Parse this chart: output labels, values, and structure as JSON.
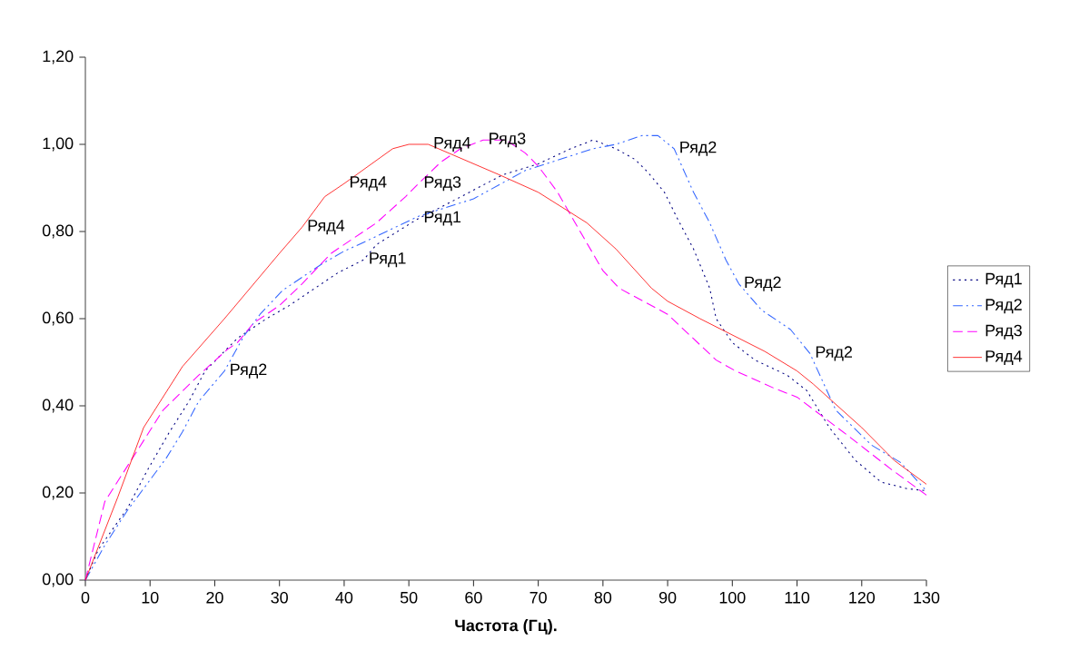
{
  "chart_data": {
    "type": "line",
    "xlabel": "Частота (Гц).",
    "xlim": [
      0,
      130
    ],
    "ylim": [
      0,
      1.2
    ],
    "xticks": [
      0,
      10,
      20,
      30,
      40,
      50,
      60,
      70,
      80,
      90,
      100,
      110,
      120,
      130
    ],
    "yticks": [
      {
        "value": 0,
        "label": "0,00"
      },
      {
        "value": 0.2,
        "label": "0,20"
      },
      {
        "value": 0.4,
        "label": "0,40"
      },
      {
        "value": 0.6,
        "label": "0,60"
      },
      {
        "value": 0.8,
        "label": "0,80"
      },
      {
        "value": 1.0,
        "label": "1,00"
      },
      {
        "value": 1.2,
        "label": "1,20"
      }
    ],
    "grid": false,
    "legend": "right",
    "marker": "none",
    "series": [
      {
        "name": "Ряд1",
        "color": "#000080",
        "line_style": "dotted",
        "x": [
          0,
          2,
          6.5,
          9.5,
          13,
          16,
          18.5,
          23.5,
          28,
          31.5,
          35.5,
          39,
          43,
          45,
          51.5,
          55.5,
          64.5,
          70,
          75,
          78.5,
          82,
          85,
          87,
          89.5,
          91.5,
          94,
          96.5,
          97.5,
          100,
          103.5,
          108.5,
          111.5,
          115,
          119,
          123,
          127,
          130
        ],
        "values": [
          0,
          0.07,
          0.165,
          0.25,
          0.34,
          0.41,
          0.48,
          0.555,
          0.6,
          0.63,
          0.67,
          0.705,
          0.735,
          0.77,
          0.83,
          0.86,
          0.93,
          0.955,
          0.99,
          1.01,
          0.99,
          0.965,
          0.935,
          0.89,
          0.83,
          0.76,
          0.67,
          0.6,
          0.545,
          0.505,
          0.47,
          0.435,
          0.35,
          0.275,
          0.225,
          0.21,
          0.205
        ]
      },
      {
        "name": "Ряд2",
        "color": "#3366ff",
        "line_style": "dashdot",
        "x": [
          0,
          3,
          6.5,
          12.5,
          15,
          17.5,
          21.5,
          24.5,
          27,
          30.5,
          36.5,
          40,
          43,
          51.5,
          60,
          68,
          78.5,
          82,
          86,
          88.5,
          91,
          94,
          96.5,
          99,
          101,
          104.5,
          109,
          112,
          116,
          121.5,
          126,
          130
        ],
        "values": [
          0,
          0.08,
          0.16,
          0.28,
          0.34,
          0.41,
          0.48,
          0.56,
          0.61,
          0.665,
          0.725,
          0.755,
          0.775,
          0.835,
          0.875,
          0.94,
          0.99,
          1.0,
          1.02,
          1.02,
          0.99,
          0.89,
          0.82,
          0.735,
          0.68,
          0.62,
          0.575,
          0.52,
          0.39,
          0.31,
          0.27,
          0.205
        ]
      },
      {
        "name": "Ряд3",
        "color": "#ff00ff",
        "line_style": "dashed",
        "x": [
          0,
          3,
          9,
          12,
          17.5,
          22,
          23.5,
          26,
          30,
          33.5,
          38,
          40,
          45,
          49.5,
          51.5,
          55,
          58,
          61.5,
          65,
          68,
          70,
          73,
          75.5,
          80,
          82.5,
          85,
          90,
          97.5,
          100.5,
          106.5,
          110,
          118,
          124.5,
          130
        ],
        "values": [
          0,
          0.18,
          0.32,
          0.39,
          0.47,
          0.53,
          0.545,
          0.59,
          0.63,
          0.68,
          0.75,
          0.77,
          0.82,
          0.88,
          0.91,
          0.96,
          0.99,
          1.01,
          1.01,
          0.98,
          0.95,
          0.89,
          0.825,
          0.71,
          0.67,
          0.65,
          0.61,
          0.505,
          0.48,
          0.44,
          0.42,
          0.33,
          0.255,
          0.195
        ]
      },
      {
        "name": "Ряд4",
        "color": "#ff0000",
        "line_style": "solid",
        "x": [
          0,
          5,
          9,
          15,
          21.5,
          30,
          33.5,
          37,
          40,
          47.5,
          50,
          53,
          64,
          70,
          77.5,
          82,
          87.5,
          90,
          95,
          105,
          110,
          112.5,
          120,
          125,
          130
        ],
        "values": [
          0,
          0.19,
          0.35,
          0.49,
          0.6,
          0.75,
          0.81,
          0.88,
          0.91,
          0.99,
          1.0,
          1.0,
          0.93,
          0.89,
          0.82,
          0.76,
          0.67,
          0.64,
          0.6,
          0.525,
          0.48,
          0.45,
          0.35,
          0.275,
          0.22
        ]
      }
    ],
    "annotations": [
      {
        "text": "Ряд1",
        "x": 43,
        "y": 0.735
      },
      {
        "text": "Ряд1",
        "x": 51.5,
        "y": 0.83
      },
      {
        "text": "Ряд2",
        "x": 21.5,
        "y": 0.48
      },
      {
        "text": "Ряд2",
        "x": 91,
        "y": 0.99
      },
      {
        "text": "Ряд2",
        "x": 101,
        "y": 0.68
      },
      {
        "text": "Ряд2",
        "x": 112,
        "y": 0.52
      },
      {
        "text": "Ряд3",
        "x": 51.5,
        "y": 0.91
      },
      {
        "text": "Ряд3",
        "x": 61.5,
        "y": 1.01
      },
      {
        "text": "Ряд4",
        "x": 33.5,
        "y": 0.81
      },
      {
        "text": "Ряд4",
        "x": 40,
        "y": 0.91
      },
      {
        "text": "Ряд4",
        "x": 53,
        "y": 1.0
      }
    ]
  }
}
